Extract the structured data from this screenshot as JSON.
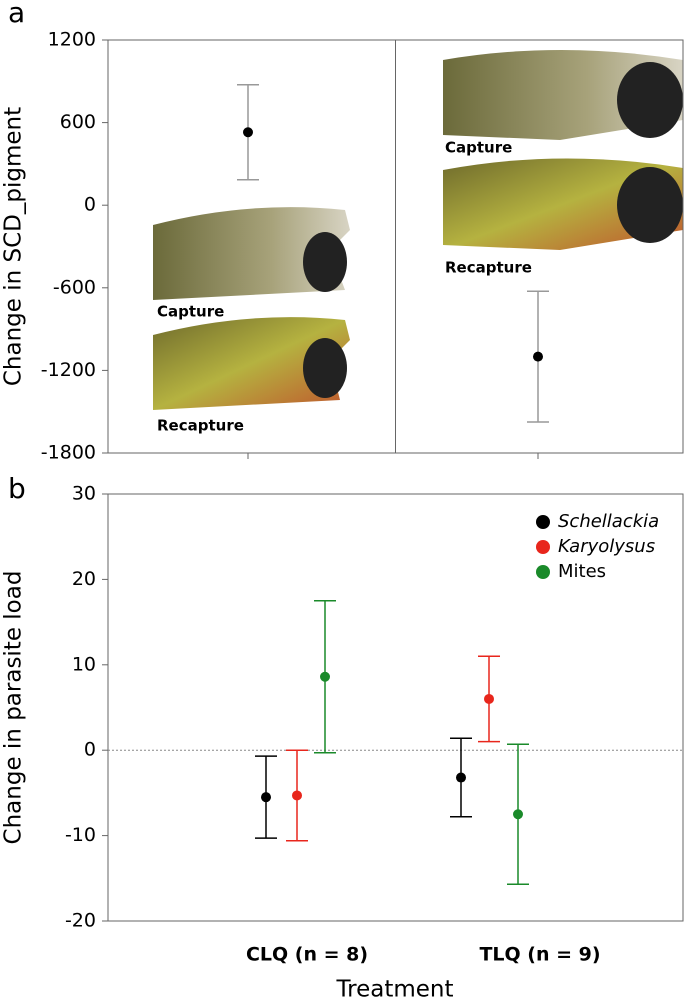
{
  "chart_data": [
    {
      "type": "errorbar",
      "panel": "a",
      "y_label": "Change in SCD_pigment",
      "categories": [
        null,
        null
      ],
      "values": [
        530,
        -1100
      ],
      "errors": [
        345,
        475
      ],
      "color": "#000000",
      "error_color": "#999999",
      "ylim": [
        -1800,
        1200
      ],
      "yticks": [
        -1800,
        -1200,
        -600,
        0,
        600,
        1200
      ],
      "annotations": [
        "Capture",
        "Recapture",
        "Capture",
        "Recapture"
      ]
    },
    {
      "type": "errorbar",
      "panel": "b",
      "y_label": "Change in parasite load",
      "x_label": "Treatment",
      "categories": [
        "CLQ (n = 8)",
        "TLQ (n = 9)"
      ],
      "series": [
        {
          "name": "Schellackia",
          "color": "#000000",
          "values": [
            -5.5,
            -3.2
          ],
          "errors": [
            4.8,
            4.6
          ]
        },
        {
          "name": "Karyolysus",
          "color": "#e8261c",
          "values": [
            -5.3,
            6
          ],
          "errors": [
            5.3,
            5
          ]
        },
        {
          "name": "Mites",
          "color": "#1a8a2a",
          "values": [
            8.6,
            -7.5
          ],
          "errors": [
            8.9,
            8.2
          ]
        }
      ],
      "ylim": [
        -20,
        30
      ],
      "yticks": [
        -20,
        -10,
        0,
        10,
        20,
        30
      ],
      "reference_line": 0,
      "legend": "top-right"
    }
  ]
}
